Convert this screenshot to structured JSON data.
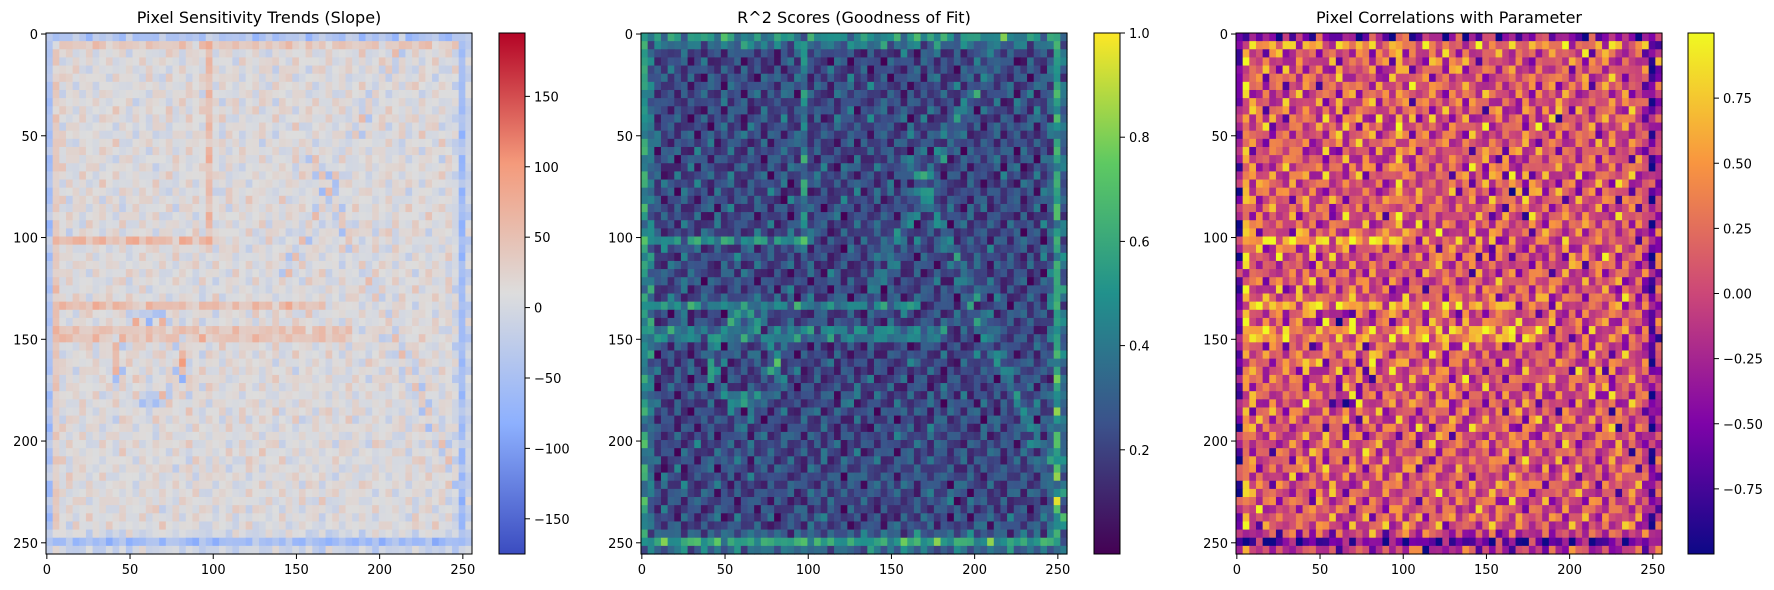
{
  "chart_data": [
    {
      "type": "heatmap",
      "title": "Pixel Sensitivity Trends (Slope)",
      "xlabel": "",
      "ylabel": "",
      "xlim": [
        0,
        255
      ],
      "ylim": [
        255,
        0
      ],
      "x_ticks": [
        0,
        50,
        100,
        150,
        200,
        250
      ],
      "y_ticks": [
        0,
        50,
        100,
        150,
        200,
        250
      ],
      "colormap": "coolwarm",
      "colorbar_range": [
        -175,
        195
      ],
      "colorbar_ticks": [
        -150,
        -100,
        -50,
        0,
        50,
        100,
        150
      ],
      "colorbar_tick_labels": [
        "−150",
        "−100",
        "−50",
        "0",
        "50",
        "100",
        "150"
      ]
    },
    {
      "type": "heatmap",
      "title": "R^2 Scores (Goodness of Fit)",
      "xlabel": "",
      "ylabel": "",
      "xlim": [
        0,
        255
      ],
      "ylim": [
        255,
        0
      ],
      "x_ticks": [
        0,
        50,
        100,
        150,
        200,
        250
      ],
      "y_ticks": [
        0,
        50,
        100,
        150,
        200,
        250
      ],
      "colormap": "viridis",
      "colorbar_range": [
        0,
        1
      ],
      "colorbar_ticks": [
        0.2,
        0.4,
        0.6,
        0.8,
        1.0
      ],
      "colorbar_tick_labels": [
        "0.2",
        "0.4",
        "0.6",
        "0.8",
        "1.0"
      ]
    },
    {
      "type": "heatmap",
      "title": "Pixel Correlations with Parameter",
      "xlabel": "",
      "ylabel": "",
      "xlim": [
        0,
        255
      ],
      "ylim": [
        255,
        0
      ],
      "x_ticks": [
        0,
        50,
        100,
        150,
        200,
        250
      ],
      "y_ticks": [
        0,
        50,
        100,
        150,
        200,
        250
      ],
      "colormap": "plasma",
      "colorbar_range": [
        -1,
        1
      ],
      "colorbar_ticks": [
        -0.75,
        -0.5,
        -0.25,
        0,
        0.25,
        0.5,
        0.75
      ],
      "colorbar_tick_labels": [
        "−0.75",
        "−0.50",
        "−0.25",
        "0.00",
        "0.25",
        "0.50",
        "0.75"
      ]
    }
  ]
}
